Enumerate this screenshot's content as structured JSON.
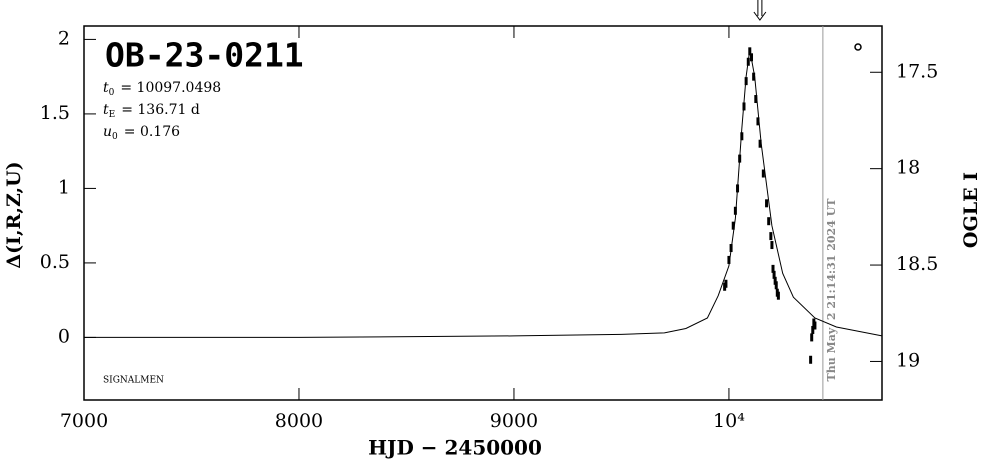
{
  "chart_data": {
    "type": "scatter",
    "title": "OB-23-0211",
    "params": [
      {
        "name": "t",
        "sub": "0",
        "text": "= 10097.0498"
      },
      {
        "name": "t",
        "sub": "E",
        "text": "= 136.71 d"
      },
      {
        "name": "u",
        "sub": "0",
        "text": "= 0.176"
      }
    ],
    "observer": "SIGNALMEN",
    "timestamp": "Thu May  2 21:14:31 2024 UT",
    "x_label": "HJD − 2450000",
    "y_label": "Δ(I,R,Z,U)",
    "y2_label": "OGLE I",
    "xlim": [
      7000,
      10712
    ],
    "xticks": [
      7000,
      8000,
      9000,
      {
        "value": 10000,
        "label": "10⁴"
      }
    ],
    "ylim": [
      -0.42,
      2.09
    ],
    "yticks": [
      0,
      0.5,
      1,
      1.5,
      2
    ],
    "y2lim": [
      19.2,
      17.26
    ],
    "y2ticks": [
      17.5,
      18,
      18.5,
      19
    ],
    "now_x": 10437,
    "arrow_x": 10144,
    "model": {
      "color": "#000000",
      "x": [
        7000,
        8000,
        9000,
        9500,
        9700,
        9800,
        9900,
        9950,
        10000,
        10030,
        10060,
        10080,
        10097,
        10120,
        10150,
        10200,
        10250,
        10300,
        10400,
        10500,
        10712
      ],
      "values": [
        0.0,
        0.0,
        0.01,
        0.02,
        0.03,
        0.06,
        0.13,
        0.28,
        0.48,
        0.8,
        1.4,
        1.75,
        1.93,
        1.75,
        1.3,
        0.75,
        0.43,
        0.27,
        0.13,
        0.07,
        0.01
      ]
    },
    "series": [
      {
        "color": "#000000",
        "x": [
          9980,
          9986,
          10000,
          10010,
          10020,
          10030,
          10040,
          10050,
          10060,
          10070,
          10080,
          10090,
          10097,
          10105,
          10115,
          10125,
          10135,
          10145,
          10160,
          10175,
          10185,
          10195,
          10200,
          10205,
          10210,
          10215,
          10220,
          10225,
          10230,
          10380,
          10385,
          10390,
          10395,
          10400
        ],
        "values": [
          0.34,
          0.36,
          0.52,
          0.6,
          0.75,
          0.85,
          1.0,
          1.2,
          1.35,
          1.55,
          1.72,
          1.85,
          1.92,
          1.88,
          1.75,
          1.6,
          1.45,
          1.3,
          1.1,
          0.9,
          0.78,
          0.68,
          0.62,
          0.46,
          0.42,
          0.38,
          0.35,
          0.3,
          0.28,
          -0.15,
          0.0,
          0.05,
          0.1,
          0.08
        ]
      }
    ]
  }
}
